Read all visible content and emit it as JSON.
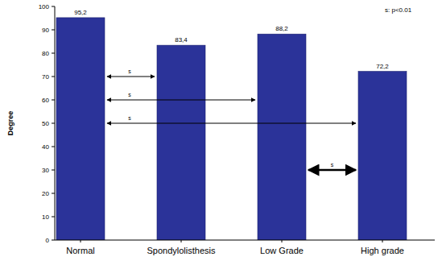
{
  "chart_data": {
    "type": "bar",
    "y_label": "Degree",
    "annotation": "s: p<0.01",
    "categories": [
      "Normal",
      "Spondylolisthesis",
      "Low Grade",
      "High grade"
    ],
    "values": [
      95.2,
      83.4,
      88.2,
      72.2
    ],
    "value_labels": [
      "95,2",
      "83,4",
      "88,2",
      "72,2"
    ],
    "data_labels": true,
    "color": "#2b3399",
    "ylim": [
      0,
      100
    ],
    "yticks": [
      0,
      10,
      20,
      30,
      40,
      50,
      60,
      70,
      80,
      90,
      100
    ],
    "grid": false,
    "significance": [
      {
        "label": "s",
        "from": "Normal",
        "to": "Spondylolisthesis"
      },
      {
        "label": "s",
        "from": "Normal",
        "to": "Low Grade"
      },
      {
        "label": "s",
        "from": "Normal",
        "to": "High grade"
      },
      {
        "label": "s",
        "from": "Low Grade",
        "to": "High grade"
      }
    ]
  }
}
